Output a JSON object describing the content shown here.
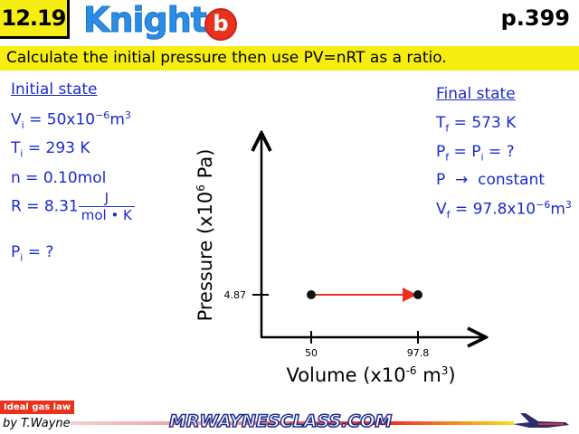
{
  "header": {
    "problem": "12.19",
    "book": "Knight",
    "badge": "b",
    "page": "p.399"
  },
  "instruction": "Calculate the initial pressure then use PV=nRT as a ratio.",
  "initial": {
    "title": "Initial state",
    "V": "V",
    "V_sub": "i",
    "V_val": " = 50x10",
    "V_exp": "−6",
    "V_unit": "m",
    "V_unit_exp": "3",
    "T": "T",
    "T_sub": "i",
    "T_val": " = 293 K",
    "n": "n = 0.10mol",
    "R": "R = 8.31",
    "R_num": "J",
    "R_den": "mol • K",
    "P": "P",
    "P_sub": "i",
    "P_val": " = ?"
  },
  "final": {
    "title": "Final state",
    "T": "T",
    "T_sub": "f",
    "T_val": " = 573 K",
    "P": "P",
    "P_sub": "f",
    "P_mid": " = P",
    "P_mid_sub": "i",
    "P_val": " = ?",
    "const": "P  →  constant",
    "V": "V",
    "V_sub": "f",
    "V_val": " = 97.8x10",
    "V_exp": "−6",
    "V_unit": "m",
    "V_unit_exp": "3"
  },
  "chart_data": {
    "type": "line",
    "xlabel": "Volume (x10-6 m3)",
    "xlabel_main": "Volume (x10",
    "xlabel_exp": "-6",
    "xlabel_unit": " m",
    "xlabel_unit_exp": "3",
    "xlabel_end": ")",
    "ylabel_main": "Pressure (x10",
    "ylabel_exp": "6",
    "ylabel_end": " Pa)",
    "x_ticks": [
      "50",
      "97.8"
    ],
    "y_ticks": [
      "4.87"
    ],
    "points": [
      {
        "x": 50,
        "y": 4.87
      },
      {
        "x": 97.8,
        "y": 4.87
      }
    ],
    "arrow_color": "#e8321c"
  },
  "footer": {
    "tag": "Ideal gas law",
    "author": "by T.Wayne",
    "site": "MRWAYNESCLASS.COM"
  }
}
